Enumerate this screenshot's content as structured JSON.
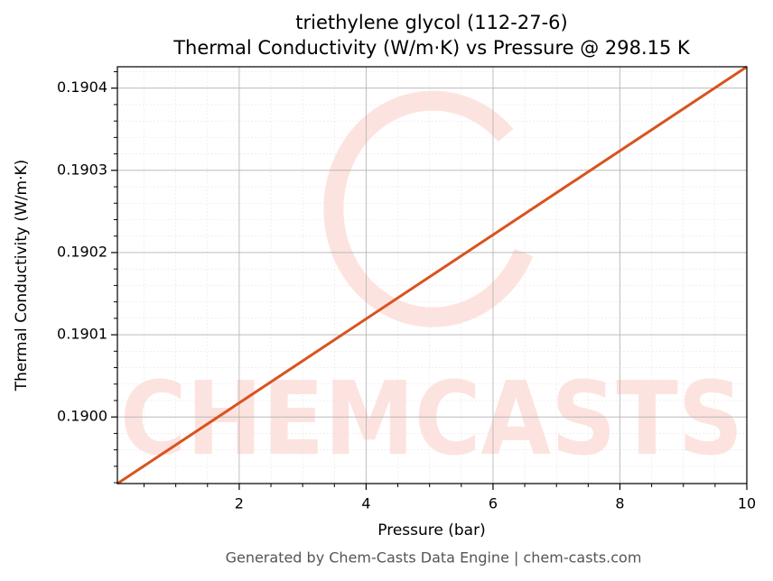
{
  "chart_data": {
    "type": "line",
    "title": "triethylene glycol (112-27-6)",
    "subtitle": "Thermal Conductivity (W/m·K) vs Pressure @ 298.15 K",
    "x_label": "Pressure (bar)",
    "y_label": "Thermal Conductivity (W/m·K)",
    "footer": "Generated by Chem-Casts Data Engine | chem-casts.com",
    "watermark": "CHEMCASTS",
    "x": [
      0.08,
      10
    ],
    "series": [
      {
        "name": "Thermal Conductivity",
        "color": "#d9531e",
        "values": [
          0.189919,
          0.190426
        ]
      }
    ],
    "xlim": [
      0.08,
      10
    ],
    "ylim": [
      0.189919,
      0.190426
    ],
    "xticks": [
      2,
      4,
      6,
      8,
      10
    ],
    "yticks": [
      {
        "value": 0.19,
        "label": "0.1900"
      },
      {
        "value": 0.1901,
        "label": "0.1901"
      },
      {
        "value": 0.1902,
        "label": "0.1902"
      },
      {
        "value": 0.1903,
        "label": "0.1903"
      },
      {
        "value": 0.1904,
        "label": "0.1904"
      }
    ],
    "xminorticks": [
      0.5,
      1,
      1.5,
      2.5,
      3,
      3.5,
      4.5,
      5,
      5.5,
      6.5,
      7,
      7.5,
      8.5,
      9,
      9.5
    ],
    "yminorticks": [
      0.18992,
      0.18994,
      0.18996,
      0.18998,
      0.19002,
      0.19004,
      0.19006,
      0.19008,
      0.19012,
      0.19014,
      0.19016,
      0.19018,
      0.19022,
      0.19024,
      0.19026,
      0.19028,
      0.19032,
      0.19034,
      0.19036,
      0.19038,
      0.19042
    ],
    "grid": true
  }
}
